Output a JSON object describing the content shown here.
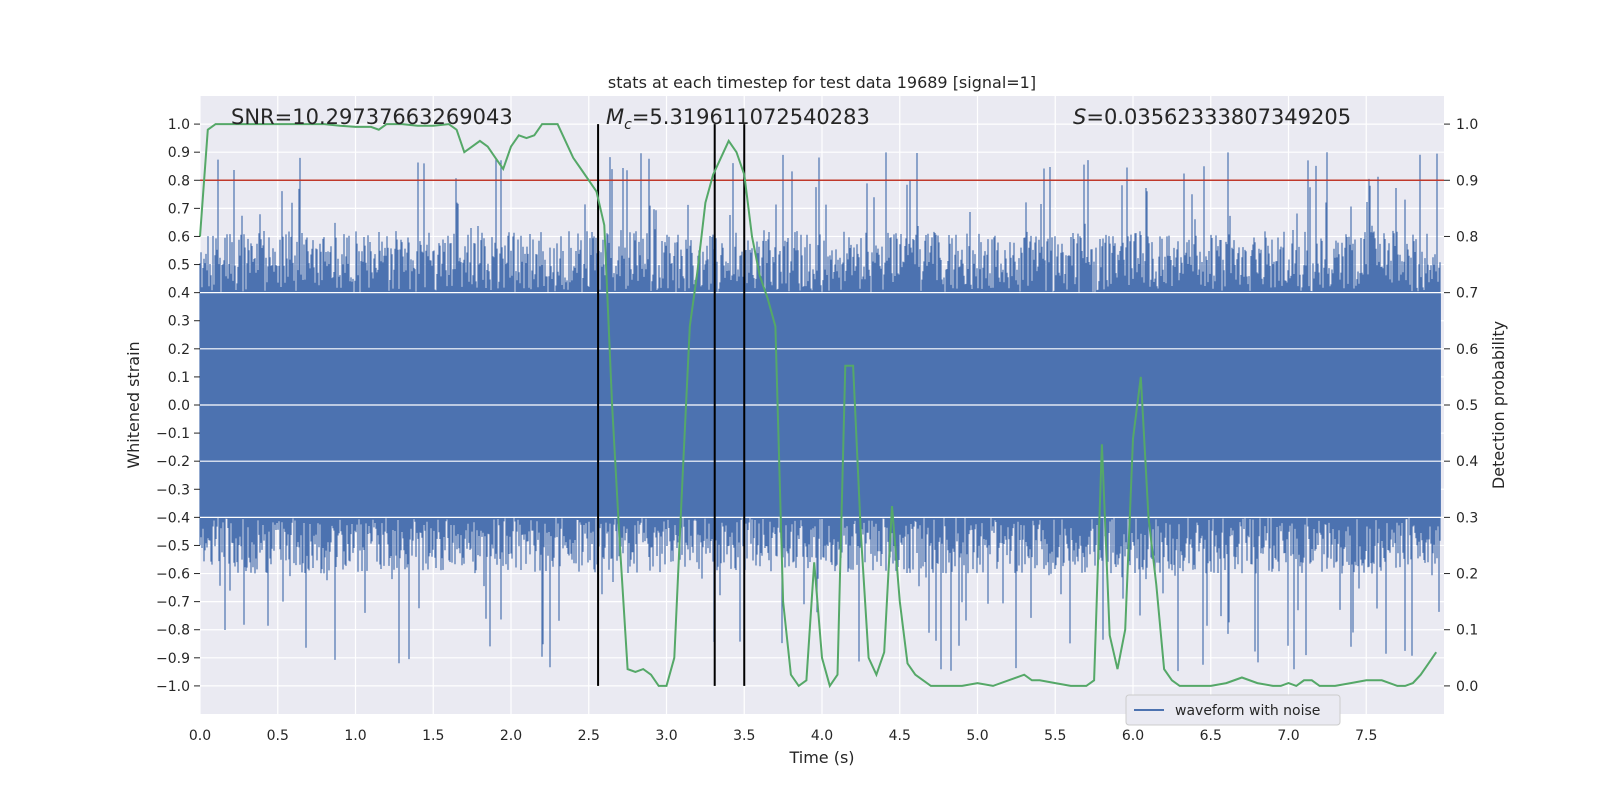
{
  "chart_data": {
    "type": "line",
    "title": "stats at each timestep for test data 19689 [signal=1]",
    "xlabel": "Time (s)",
    "ylabel_left": "Whitened strain",
    "ylabel_right": "Detection probability",
    "xlim": [
      0.0,
      8.0
    ],
    "ylim_left": [
      -1.1,
      1.1
    ],
    "ylim_right": [
      -0.05,
      1.05
    ],
    "x_ticks": [
      "0.0",
      "0.5",
      "1.0",
      "1.5",
      "2.0",
      "2.5",
      "3.0",
      "3.5",
      "4.0",
      "4.5",
      "5.0",
      "5.5",
      "6.0",
      "6.5",
      "7.0",
      "7.5"
    ],
    "x_tick_values": [
      0.0,
      0.5,
      1.0,
      1.5,
      2.0,
      2.5,
      3.0,
      3.5,
      4.0,
      4.5,
      5.0,
      5.5,
      6.0,
      6.5,
      7.0,
      7.5
    ],
    "y_ticks_left": [
      "1.0",
      "0.9",
      "0.8",
      "0.7",
      "0.6",
      "0.5",
      "0.4",
      "0.3",
      "0.2",
      "0.1",
      "0.0",
      "−0.1",
      "−0.2",
      "−0.3",
      "−0.4",
      "−0.5",
      "−0.6",
      "−0.7",
      "−0.8",
      "−0.9",
      "−1.0"
    ],
    "y_tick_values_left": [
      1.0,
      0.9,
      0.8,
      0.7,
      0.6,
      0.5,
      0.4,
      0.3,
      0.2,
      0.1,
      0.0,
      -0.1,
      -0.2,
      -0.3,
      -0.4,
      -0.5,
      -0.6,
      -0.7,
      -0.8,
      -0.9,
      -1.0
    ],
    "y_ticks_right": [
      "1.0",
      "0.9",
      "0.8",
      "0.7",
      "0.6",
      "0.5",
      "0.4",
      "0.3",
      "0.2",
      "0.1",
      "0.0"
    ],
    "y_tick_values_right": [
      1.0,
      0.9,
      0.8,
      0.7,
      0.6,
      0.5,
      0.4,
      0.3,
      0.2,
      0.1,
      0.0
    ],
    "grid": true,
    "legend_position": "bottom-right",
    "annotations": {
      "snr": "SNR=10.29737663269043",
      "mc_symbol": "M",
      "mc_sub": "c",
      "mc_value": "=5.319611072540283",
      "s_symbol": "S",
      "s_value": "=0.03562333807349205"
    },
    "threshold": {
      "axis": "right",
      "y": 0.9,
      "color": "#c0392b"
    },
    "vertical_lines": [
      2.56,
      3.31,
      3.5
    ],
    "vertical_line_range": [
      -1.0,
      1.0
    ],
    "series": [
      {
        "name": "waveform with noise",
        "axis": "left",
        "color": "#4c72b0",
        "summary": {
          "core_amplitude": 0.4,
          "spike_amplitude_max": 0.9,
          "t_start": 0.0,
          "t_end": 7.98
        }
      },
      {
        "axis": "right",
        "color": "#55a868",
        "x": [
          0.0,
          0.05,
          0.1,
          0.15,
          0.2,
          0.3,
          0.4,
          0.5,
          0.6,
          0.7,
          0.8,
          0.9,
          1.0,
          1.1,
          1.15,
          1.2,
          1.25,
          1.3,
          1.4,
          1.5,
          1.6,
          1.65,
          1.7,
          1.75,
          1.8,
          1.85,
          1.9,
          1.95,
          2.0,
          2.05,
          2.1,
          2.15,
          2.2,
          2.3,
          2.35,
          2.4,
          2.45,
          2.5,
          2.55,
          2.6,
          2.65,
          2.7,
          2.75,
          2.8,
          2.85,
          2.9,
          2.95,
          3.0,
          3.05,
          3.1,
          3.15,
          3.2,
          3.25,
          3.3,
          3.35,
          3.4,
          3.45,
          3.5,
          3.55,
          3.6,
          3.65,
          3.7,
          3.75,
          3.8,
          3.85,
          3.9,
          3.95,
          4.0,
          4.05,
          4.1,
          4.15,
          4.2,
          4.25,
          4.3,
          4.35,
          4.4,
          4.45,
          4.5,
          4.55,
          4.6,
          4.65,
          4.7,
          4.8,
          4.9,
          5.0,
          5.1,
          5.2,
          5.3,
          5.35,
          5.4,
          5.5,
          5.6,
          5.7,
          5.75,
          5.8,
          5.85,
          5.9,
          5.95,
          6.0,
          6.05,
          6.1,
          6.15,
          6.2,
          6.25,
          6.3,
          6.35,
          6.4,
          6.45,
          6.5,
          6.6,
          6.7,
          6.8,
          6.9,
          6.95,
          7.0,
          7.05,
          7.1,
          7.15,
          7.2,
          7.3,
          7.4,
          7.5,
          7.6,
          7.7,
          7.75,
          7.8,
          7.85,
          7.9,
          7.95
        ],
        "y": [
          0.8,
          0.99,
          1.0,
          1.0,
          1.0,
          1.0,
          1.0,
          1.0,
          1.0,
          1.0,
          1.0,
          0.997,
          0.995,
          0.995,
          0.99,
          1.0,
          1.0,
          1.0,
          0.997,
          0.997,
          1.0,
          0.99,
          0.95,
          0.96,
          0.97,
          0.96,
          0.94,
          0.92,
          0.96,
          0.98,
          0.975,
          0.98,
          1.0,
          1.0,
          0.97,
          0.94,
          0.92,
          0.9,
          0.88,
          0.82,
          0.5,
          0.25,
          0.03,
          0.025,
          0.03,
          0.02,
          0.0,
          0.0,
          0.05,
          0.35,
          0.64,
          0.74,
          0.86,
          0.91,
          0.94,
          0.97,
          0.95,
          0.91,
          0.8,
          0.73,
          0.69,
          0.64,
          0.15,
          0.02,
          0.0,
          0.01,
          0.22,
          0.05,
          0.0,
          0.02,
          0.57,
          0.57,
          0.27,
          0.05,
          0.02,
          0.06,
          0.32,
          0.15,
          0.04,
          0.02,
          0.01,
          0.0,
          0.0,
          0.0,
          0.005,
          0.0,
          0.01,
          0.02,
          0.01,
          0.01,
          0.005,
          0.0,
          0.0,
          0.01,
          0.43,
          0.09,
          0.03,
          0.1,
          0.44,
          0.55,
          0.3,
          0.18,
          0.03,
          0.01,
          0.0,
          0.0,
          0.0,
          0.0,
          0.0,
          0.005,
          0.015,
          0.005,
          0.0,
          0.0,
          0.005,
          0.0,
          0.01,
          0.01,
          0.0,
          0.0,
          0.005,
          0.01,
          0.01,
          0.0,
          0.0,
          0.005,
          0.02,
          0.04,
          0.06
        ]
      }
    ]
  }
}
